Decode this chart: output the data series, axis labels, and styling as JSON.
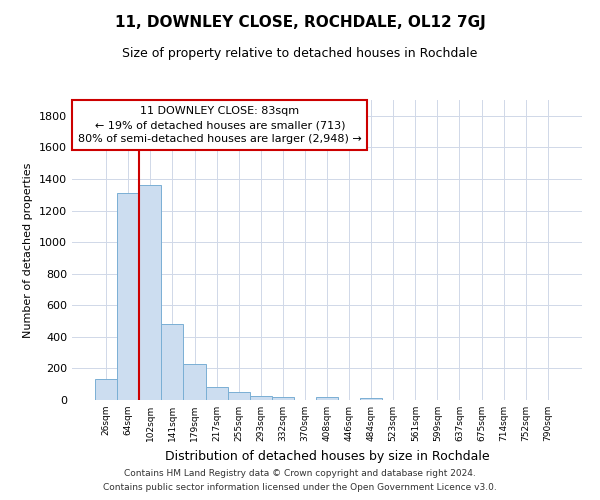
{
  "title1": "11, DOWNLEY CLOSE, ROCHDALE, OL12 7GJ",
  "title2": "Size of property relative to detached houses in Rochdale",
  "xlabel": "Distribution of detached houses by size in Rochdale",
  "ylabel": "Number of detached properties",
  "footer1": "Contains HM Land Registry data © Crown copyright and database right 2024.",
  "footer2": "Contains public sector information licensed under the Open Government Licence v3.0.",
  "bar_labels": [
    "26sqm",
    "64sqm",
    "102sqm",
    "141sqm",
    "179sqm",
    "217sqm",
    "255sqm",
    "293sqm",
    "332sqm",
    "370sqm",
    "408sqm",
    "446sqm",
    "484sqm",
    "523sqm",
    "561sqm",
    "599sqm",
    "637sqm",
    "675sqm",
    "714sqm",
    "752sqm",
    "790sqm"
  ],
  "bar_values": [
    130,
    1310,
    1360,
    480,
    225,
    80,
    48,
    28,
    18,
    0,
    20,
    0,
    15,
    0,
    0,
    0,
    0,
    0,
    0,
    0,
    0
  ],
  "bar_color": "#ccddf0",
  "bar_edge_color": "#7aafd4",
  "ylim": [
    0,
    1900
  ],
  "yticks": [
    0,
    200,
    400,
    600,
    800,
    1000,
    1200,
    1400,
    1600,
    1800
  ],
  "red_line_x": 1.5,
  "annotation_text_line1": "11 DOWNLEY CLOSE: 83sqm",
  "annotation_text_line2": "← 19% of detached houses are smaller (713)",
  "annotation_text_line3": "80% of semi-detached houses are larger (2,948) →",
  "bg_color": "#ffffff",
  "plot_bg_color": "#ffffff",
  "grid_color": "#d0d8e8",
  "red_line_color": "#cc0000",
  "box_edge_color": "#cc0000",
  "title1_fontsize": 11,
  "title2_fontsize": 9,
  "xlabel_fontsize": 9,
  "ylabel_fontsize": 8,
  "footer_fontsize": 6.5,
  "annot_fontsize": 8
}
